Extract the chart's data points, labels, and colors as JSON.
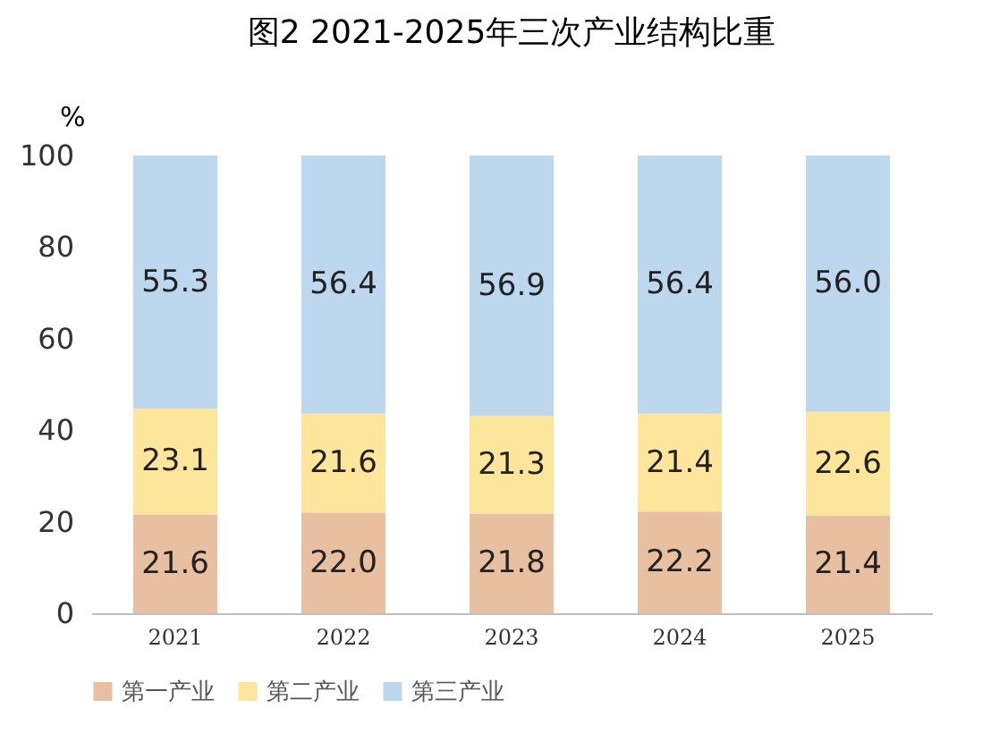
{
  "chart_data": {
    "type": "bar",
    "title": "图2 2021-2025年三次产业结构比重",
    "ylabel": "%",
    "categories": [
      "2021",
      "2022",
      "2023",
      "2024",
      "2025"
    ],
    "stacked": true,
    "legend": "bottom",
    "ylim": [
      0,
      100
    ],
    "yticks": [
      0,
      20,
      40,
      60,
      80,
      100
    ],
    "series": [
      {
        "name": "第一产业",
        "color": "#e8bfa0",
        "values": [
          21.6,
          22.0,
          21.8,
          22.2,
          21.4
        ],
        "value_labels": [
          "21.6",
          "22.0",
          "21.8",
          "22.2",
          "21.4"
        ]
      },
      {
        "name": "第二产业",
        "color": "#fde59b",
        "values": [
          23.1,
          21.6,
          21.3,
          21.4,
          22.6
        ],
        "value_labels": [
          "23.1",
          "21.6",
          "21.3",
          "21.4",
          "22.6"
        ]
      },
      {
        "name": "第三产业",
        "color": "#bdd7ee",
        "values": [
          55.3,
          56.4,
          56.9,
          56.4,
          56.0
        ],
        "value_labels": [
          "55.3",
          "56.4",
          "56.9",
          "56.4",
          "56.0"
        ]
      }
    ]
  }
}
